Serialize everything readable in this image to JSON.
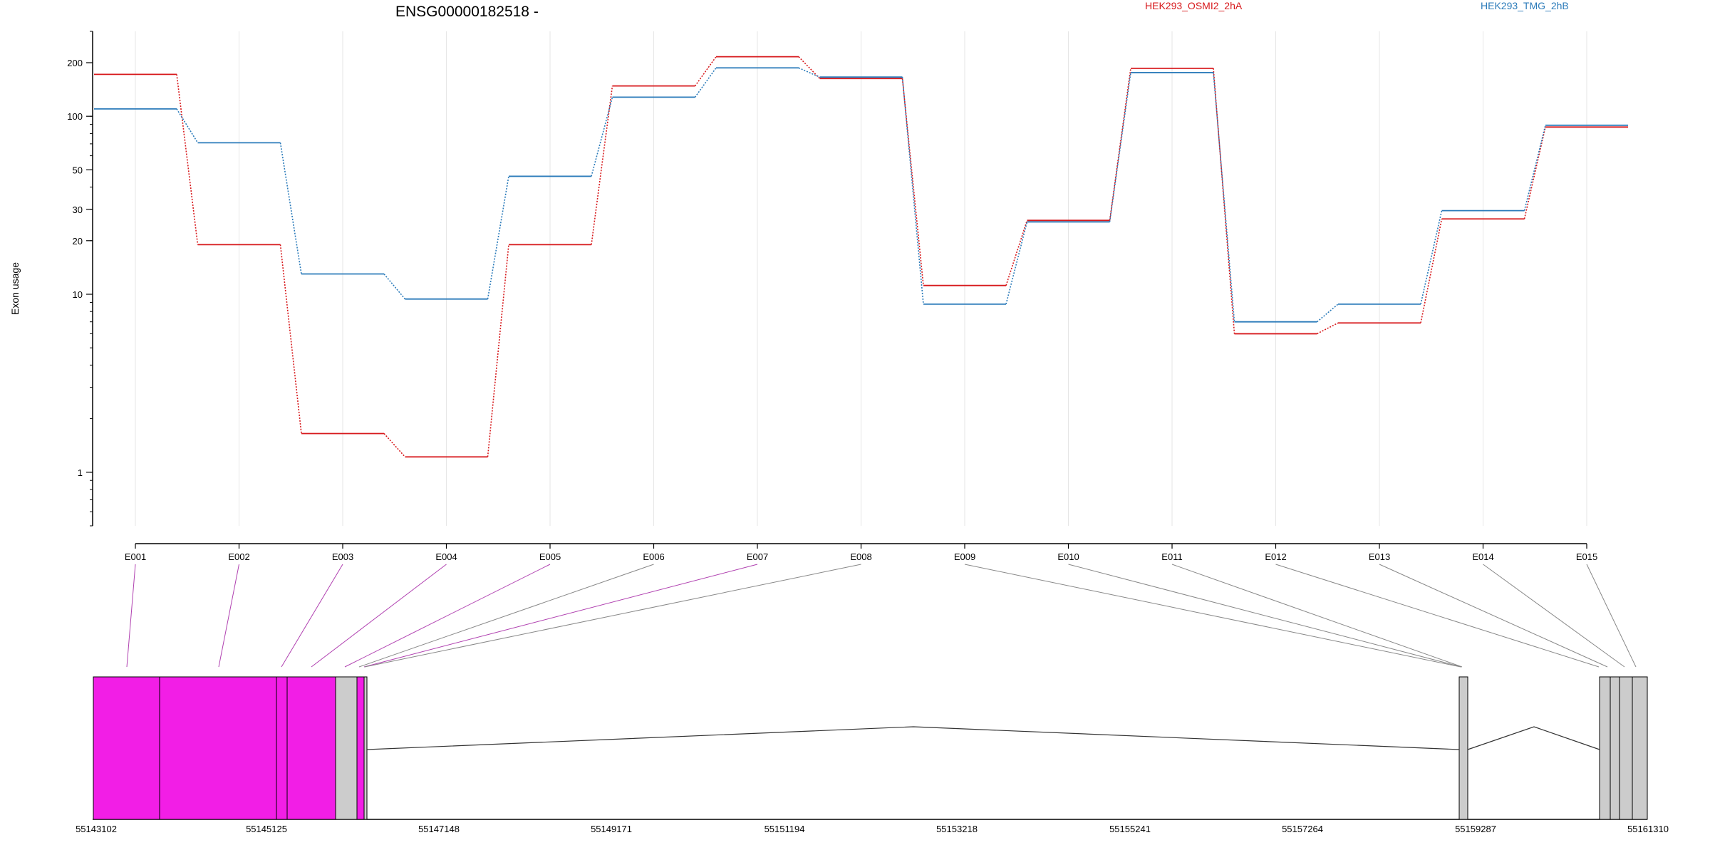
{
  "chart_data": {
    "type": "line",
    "title": "ENSG00000182518 -",
    "ylabel": "Exon usage",
    "yscale": "log",
    "ylim": [
      0.5,
      300
    ],
    "yticks": [
      1,
      10,
      20,
      30,
      50,
      100,
      200
    ],
    "grid": "vertical",
    "legend_position": "top-right",
    "categories": [
      "E001",
      "E002",
      "E003",
      "E004",
      "E005",
      "E006",
      "E007",
      "E008",
      "E009",
      "E010",
      "E011",
      "E012",
      "E013",
      "E014",
      "E015"
    ],
    "series": [
      {
        "name": "HEK293_OSMI2_2hA",
        "color": "#d7191c",
        "values": [
          172,
          19,
          1.65,
          1.22,
          19,
          148,
          216,
          163,
          11.2,
          26,
          186,
          6.0,
          6.9,
          26.5,
          87
        ]
      },
      {
        "name": "HEK293_TMG_2hB",
        "color": "#2b7bba",
        "values": [
          110,
          71,
          13,
          9.4,
          46,
          128,
          187,
          166,
          8.8,
          25.5,
          176,
          7.0,
          8.8,
          29.5,
          89
        ]
      }
    ],
    "gene_model": {
      "coordinate_ticks": [
        "55143102",
        "55145125",
        "55147148",
        "55149171",
        "55151194",
        "55153218",
        "55155241",
        "55157264",
        "55159287",
        "55161310"
      ],
      "highlight_color": "#f21ee6",
      "exon_color": "#cccccc"
    }
  }
}
